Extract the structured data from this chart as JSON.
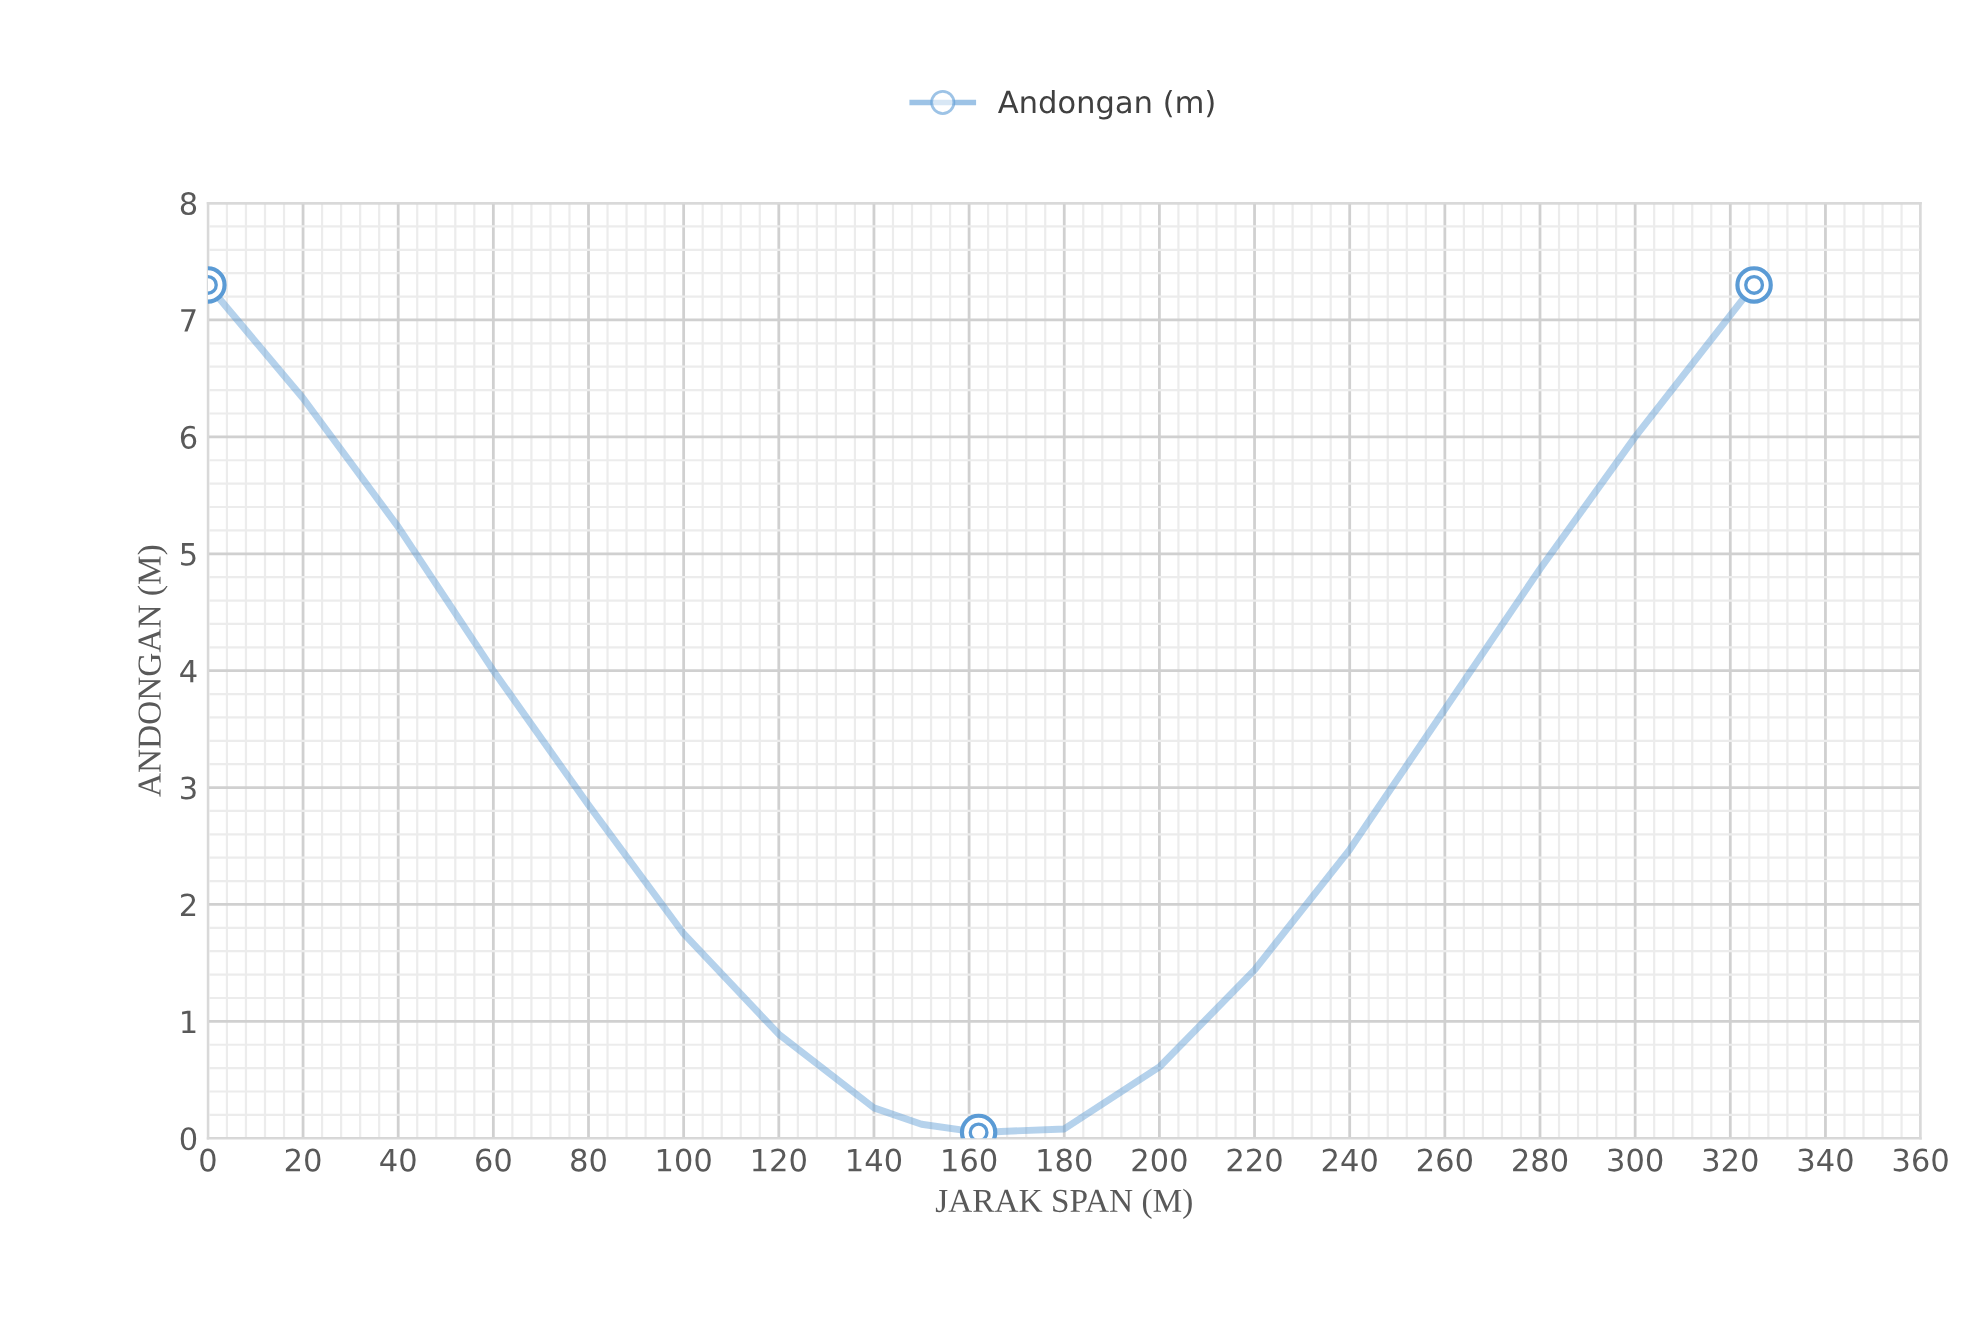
{
  "chart_data": {
    "type": "line",
    "xlabel": "JARAK SPAN (M)",
    "ylabel": "ANDONGAN (M)",
    "series": [
      {
        "name": "Andongan (m)",
        "marker": "none",
        "color": "#5b9bd5",
        "x": [
          0,
          20,
          40,
          60,
          80,
          100,
          120,
          140,
          150,
          162,
          180,
          200,
          220,
          240,
          260,
          280,
          300,
          325
        ],
        "values": [
          7.3,
          6.33,
          5.23,
          4.0,
          2.85,
          1.75,
          0.89,
          0.26,
          0.12,
          0.05,
          0.08,
          0.61,
          1.44,
          2.47,
          3.67,
          4.87,
          6.0,
          7.3
        ]
      },
      {
        "type": "scatter",
        "color": "#5b9bd5",
        "x": [
          0,
          162,
          325
        ],
        "values": [
          7.3,
          0.05,
          7.3
        ]
      }
    ],
    "xlim": [
      0,
      360
    ],
    "xticks": [
      0,
      20,
      40,
      60,
      80,
      100,
      120,
      140,
      160,
      180,
      200,
      220,
      240,
      260,
      280,
      300,
      320,
      340,
      360
    ],
    "ylim": [
      0,
      8
    ],
    "yticks": [
      0,
      1,
      2,
      3,
      4,
      5,
      6,
      7,
      8
    ],
    "grid": true,
    "legend": "top",
    "marker": "circle",
    "line_style": "solid"
  }
}
